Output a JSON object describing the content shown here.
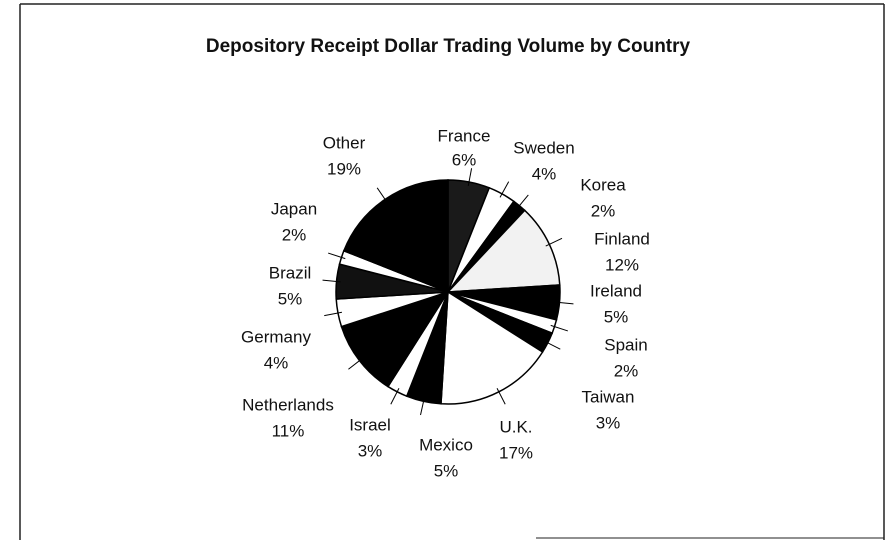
{
  "chart_data": {
    "type": "pie",
    "title": "Depository Receipt Dollar Trading Volume by Country",
    "categories": [
      "France",
      "Sweden",
      "Korea",
      "Finland",
      "Ireland",
      "Spain",
      "Taiwan",
      "U.K.",
      "Mexico",
      "Israel",
      "Netherlands",
      "Germany",
      "Brazil",
      "Japan",
      "Other"
    ],
    "values": [
      6,
      4,
      2,
      12,
      5,
      2,
      3,
      17,
      5,
      3,
      11,
      4,
      5,
      2,
      19
    ],
    "value_labels": [
      "6%",
      "4%",
      "2%",
      "12%",
      "5%",
      "2%",
      "3%",
      "17%",
      "5%",
      "3%",
      "11%",
      "4%",
      "5%",
      "2%",
      "19%"
    ],
    "colors": [
      "#1a1a1a",
      "#ffffff",
      "#000000",
      "#f2f2f2",
      "#000000",
      "#ffffff",
      "#000000",
      "#ffffff",
      "#000000",
      "#ffffff",
      "#000000",
      "#ffffff",
      "#111111",
      "#ffffff",
      "#000000"
    ]
  }
}
